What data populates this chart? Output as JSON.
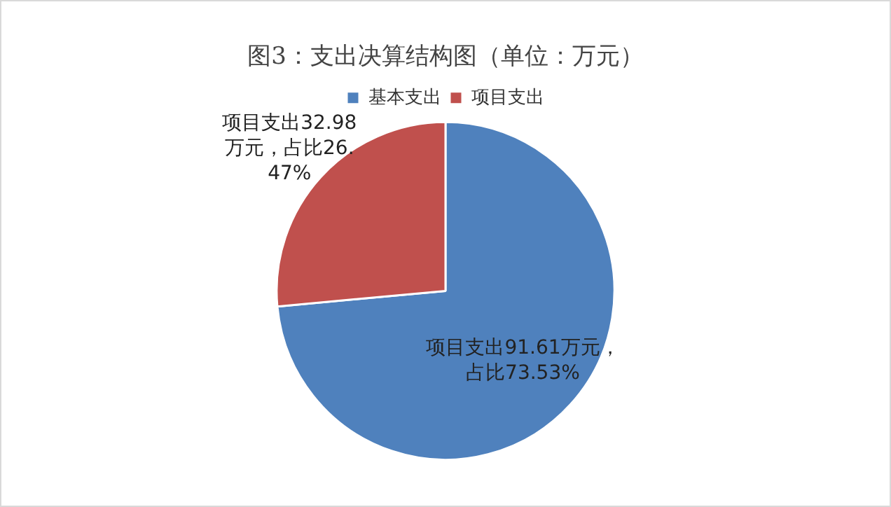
{
  "chart_data": {
    "type": "pie",
    "title": "图3：支出决算结构图（单位：万元）",
    "categories": [
      "基本支出",
      "项目支出"
    ],
    "values": [
      91.61,
      32.98
    ],
    "colors": [
      "#4f81bd",
      "#c0504d"
    ],
    "value_labels": [
      "项目支出91.61万元，占比73.53%",
      "项目支出32.98万元，占比26.47%"
    ],
    "legend": "top"
  }
}
